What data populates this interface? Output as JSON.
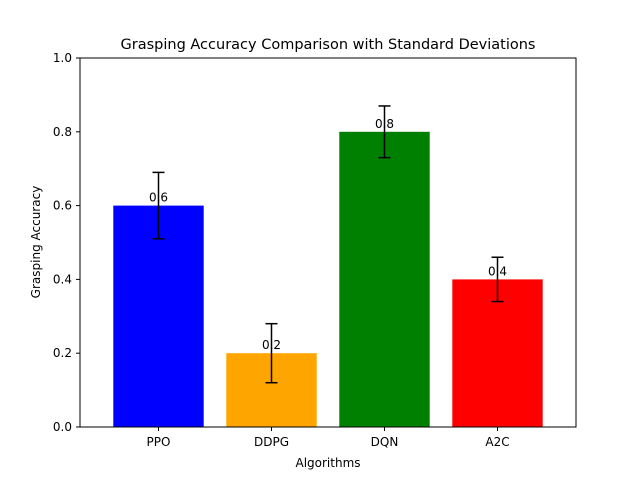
{
  "chart_data": {
    "type": "bar",
    "title": "Grasping Accuracy Comparison with Standard Deviations",
    "xlabel": "Algorithms",
    "ylabel": "Grasping Accuracy",
    "categories": [
      "PPO",
      "DDPG",
      "DQN",
      "A2C"
    ],
    "values": [
      0.6,
      0.2,
      0.8,
      0.4
    ],
    "errors": [
      0.09,
      0.08,
      0.07,
      0.06
    ],
    "data_labels": [
      "0.6",
      "0.2",
      "0.8",
      "0.4"
    ],
    "colors": [
      "#0000ff",
      "#ffa500",
      "#008000",
      "#ff0000"
    ],
    "ylim": [
      0,
      1.0
    ],
    "yticks": [
      0.0,
      0.2,
      0.4,
      0.6,
      0.8,
      1.0
    ],
    "ytick_labels": [
      "0.0",
      "0.2",
      "0.4",
      "0.6",
      "0.8",
      "1.0"
    ],
    "grid": false,
    "legend": "none"
  }
}
